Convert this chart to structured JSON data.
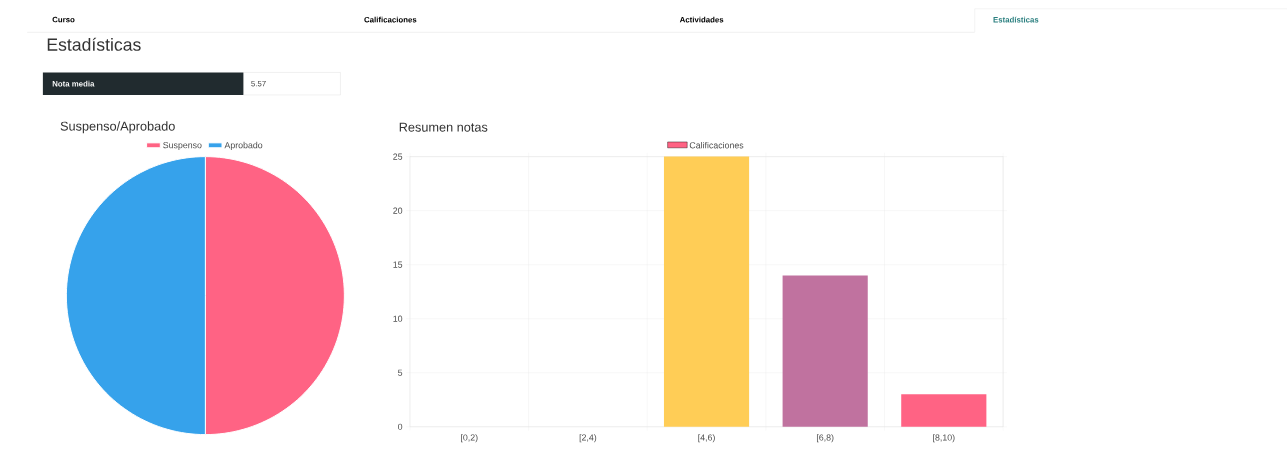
{
  "chart_data": [
    {
      "type": "other",
      "title": "Estadísticas",
      "annotations": [
        "Curso",
        "Calificaciones",
        "Actividades",
        "Estadísticas",
        "Nota media",
        "5.57"
      ]
    },
    {
      "type": "pie",
      "title": "Suspenso/Aprobado",
      "categories": [
        "Suspenso",
        "Aprobado"
      ],
      "values": [
        50,
        50
      ],
      "colors": [
        "#ff6384",
        "#36a2eb"
      ],
      "legend": "top"
    },
    {
      "type": "bar",
      "title": "Resumen notas",
      "categories": [
        "[0,2)",
        "[2,4)",
        "[4,6)",
        "[6,8)",
        "[8,10)"
      ],
      "series": [
        {
          "name": "Calificaciones",
          "color": "#ff6384",
          "colors": [
            "#ff6384",
            "#36a2eb",
            "#ffcd56",
            "#c0729f",
            "#ff6384"
          ],
          "values": [
            0,
            0,
            25,
            14,
            3
          ]
        }
      ],
      "ylim": [
        0,
        25
      ],
      "yticks": [
        0,
        5,
        10,
        15,
        20,
        25
      ],
      "grid": true,
      "legend": "top"
    }
  ]
}
